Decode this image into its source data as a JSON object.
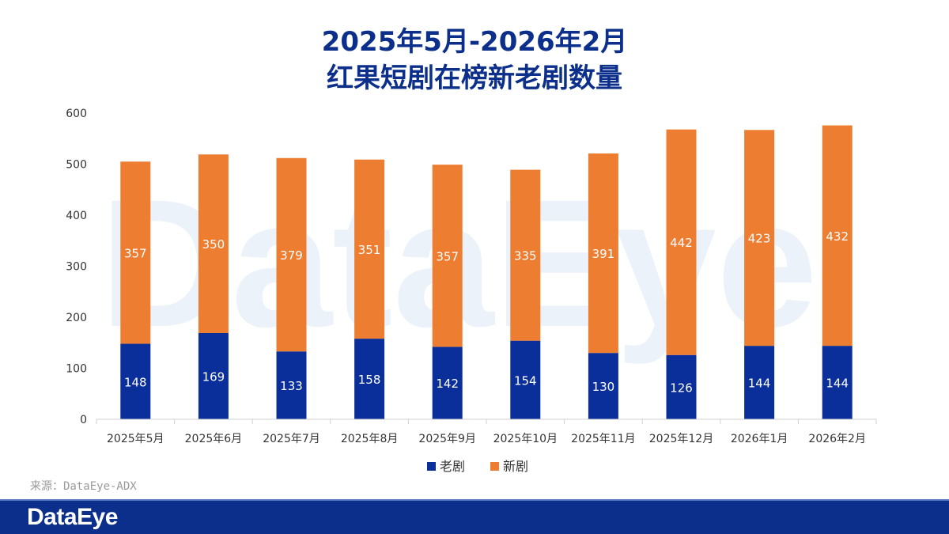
{
  "title": {
    "line1": "2025年5月-2026年2月",
    "line2": "红果短剧在榜新老剧数量"
  },
  "watermark": "DataEye",
  "source": "来源：DataEye-ADX",
  "footer": {
    "logo": "DataEye",
    "background": "#0b2f8a"
  },
  "colors": {
    "old": "#0b2f9a",
    "new": "#ed7d31",
    "title": "#0b2f8a"
  },
  "chart_data": {
    "type": "bar",
    "stacked": true,
    "categories": [
      "2025年5月",
      "2025年6月",
      "2025年7月",
      "2025年8月",
      "2025年9月",
      "2025年10月",
      "2025年11月",
      "2025年12月",
      "2026年1月",
      "2026年2月"
    ],
    "series": [
      {
        "name": "老剧",
        "color": "#0b2f9a",
        "values": [
          148,
          169,
          133,
          158,
          142,
          154,
          130,
          126,
          144,
          144
        ]
      },
      {
        "name": "新剧",
        "color": "#ed7d31",
        "values": [
          357,
          350,
          379,
          351,
          357,
          335,
          391,
          442,
          423,
          432
        ]
      }
    ],
    "yticks": [
      0,
      100,
      200,
      300,
      400,
      500,
      600
    ],
    "ylim": [
      0,
      600
    ],
    "data_labels": true,
    "legend": "bottom",
    "grid": false
  }
}
